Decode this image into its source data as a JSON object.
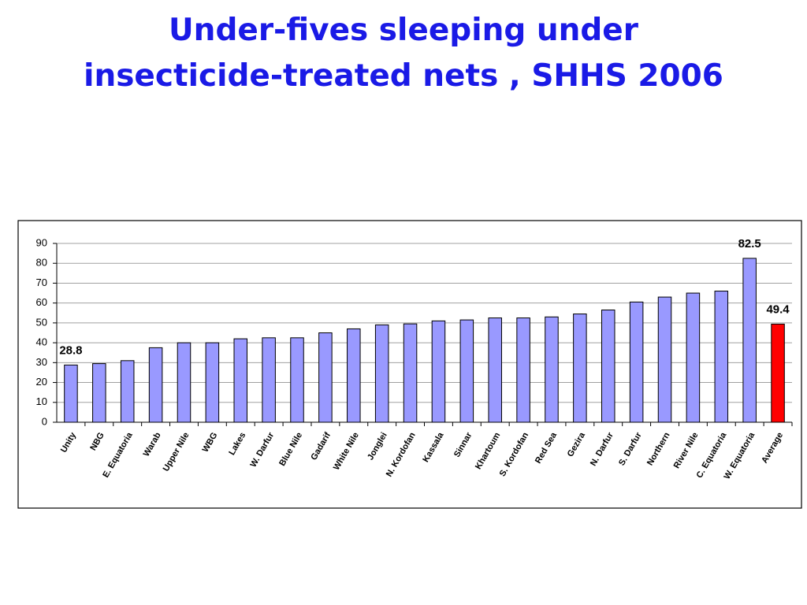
{
  "chart_data": {
    "type": "bar",
    "title": "Under-fives sleeping under insecticide-treated nets , SHHS 2006",
    "categories": [
      "Unity",
      "NBG",
      "E. Equatoria",
      "Warab",
      "Upper Nile",
      "WBG",
      "Lakes",
      "W. Darfur",
      "Blue Nile",
      "Gadarif",
      "White Nile",
      "Jonglei",
      "N. Kordofan",
      "Kassala",
      "Sinnar",
      "Khartoum",
      "S. Kordofan",
      "Red Sea",
      "Gezira",
      "N. Darfur",
      "S. Darfur",
      "Northern",
      "River Nile",
      "C. Equatoria",
      "W. Equatoria",
      "Average"
    ],
    "values": [
      28.8,
      29.5,
      31,
      37.5,
      40,
      40,
      42,
      42.5,
      42.5,
      45,
      47,
      49,
      49.5,
      51,
      51.5,
      52.5,
      52.5,
      53,
      54.5,
      56.5,
      60.5,
      63,
      65,
      66,
      82.5,
      49.4
    ],
    "value_labels": [
      "28.8",
      null,
      null,
      null,
      null,
      null,
      null,
      null,
      null,
      null,
      null,
      null,
      null,
      null,
      null,
      null,
      null,
      null,
      null,
      null,
      null,
      null,
      null,
      null,
      "82.5",
      "49.4"
    ],
    "colors": [
      "#9999ff",
      "#9999ff",
      "#9999ff",
      "#9999ff",
      "#9999ff",
      "#9999ff",
      "#9999ff",
      "#9999ff",
      "#9999ff",
      "#9999ff",
      "#9999ff",
      "#9999ff",
      "#9999ff",
      "#9999ff",
      "#9999ff",
      "#9999ff",
      "#9999ff",
      "#9999ff",
      "#9999ff",
      "#9999ff",
      "#9999ff",
      "#9999ff",
      "#9999ff",
      "#9999ff",
      "#9999ff",
      "#ff0000"
    ],
    "ylim": [
      0,
      90
    ],
    "yticks": [
      0,
      10,
      20,
      30,
      40,
      50,
      60,
      70,
      80,
      90
    ],
    "grid": true
  }
}
